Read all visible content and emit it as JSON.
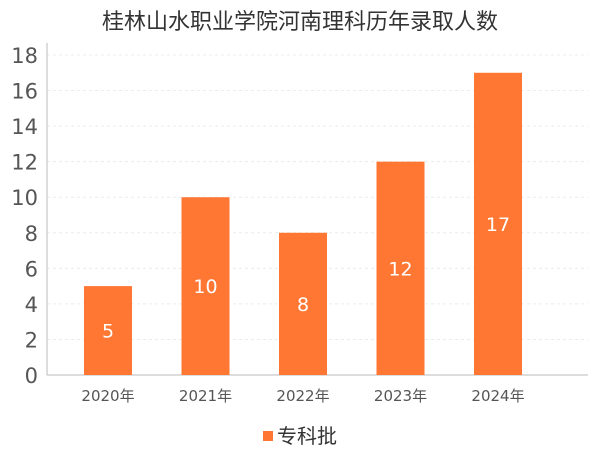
{
  "chart_data": {
    "type": "bar",
    "title": "桂林山水职业学院河南理科历年录取人数",
    "categories": [
      "2020年",
      "2021年",
      "2022年",
      "2023年",
      "2024年"
    ],
    "series": [
      {
        "name": "专科批",
        "values": [
          5,
          10,
          8,
          12,
          17
        ],
        "color": "#FF7733"
      }
    ],
    "ylim": [
      0,
      18
    ],
    "yticks": [
      0,
      2,
      4,
      6,
      8,
      10,
      12,
      14,
      16,
      18
    ],
    "grid": true,
    "legend_position": "bottom-center",
    "data_labels": true
  }
}
